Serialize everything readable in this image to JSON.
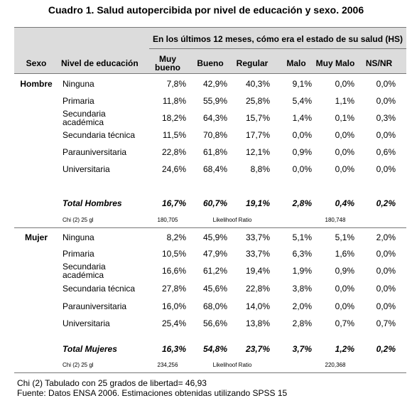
{
  "title": "Cuadro 1. Salud autopercibida por nivel de educación y sexo. 2006",
  "header": {
    "span_label": "En los últimos 12 meses, cómo era el estado de su salud (HS)",
    "columns": [
      "Sexo",
      "Nivel de educación",
      "Muy bueno",
      "Bueno",
      "Regular",
      "Malo",
      "Muy Malo",
      "NS/NR"
    ]
  },
  "groups": [
    {
      "sex": "Hombre",
      "rows": [
        {
          "level": "Ninguna",
          "values": [
            "7,8%",
            "42,9%",
            "40,3%",
            "9,1%",
            "0,0%",
            "0,0%"
          ]
        },
        {
          "level": "Primaria",
          "values": [
            "11,8%",
            "55,9%",
            "25,8%",
            "5,4%",
            "1,1%",
            "0,0%"
          ]
        },
        {
          "level": "Secundaria académica",
          "values": [
            "18,2%",
            "64,3%",
            "15,7%",
            "1,4%",
            "0,1%",
            "0,3%"
          ]
        },
        {
          "level": "Secundaria técnica",
          "values": [
            "11,5%",
            "70,8%",
            "17,7%",
            "0,0%",
            "0,0%",
            "0,0%"
          ]
        },
        {
          "level": "Parauniversitaria",
          "values": [
            "22,8%",
            "61,8%",
            "12,1%",
            "0,9%",
            "0,0%",
            "0,6%"
          ]
        },
        {
          "level": "Universitaria",
          "values": [
            "24,6%",
            "68,4%",
            "8,8%",
            "0,0%",
            "0,0%",
            "0,0%"
          ]
        }
      ],
      "total": {
        "label": "Total Hombres",
        "values": [
          "16,7%",
          "60,7%",
          "19,1%",
          "2,8%",
          "0,4%",
          "0,2%"
        ]
      },
      "chi": {
        "label": "Chi (2) 25 gl",
        "value": "180,705",
        "ratio_label": "Likelihoof Ratio",
        "ratio_value": "180,748"
      }
    },
    {
      "sex": "Mujer",
      "rows": [
        {
          "level": "Ninguna",
          "values": [
            "8,2%",
            "45,9%",
            "33,7%",
            "5,1%",
            "5,1%",
            "2,0%"
          ]
        },
        {
          "level": "Primaria",
          "values": [
            "10,5%",
            "47,9%",
            "33,7%",
            "6,3%",
            "1,6%",
            "0,0%"
          ]
        },
        {
          "level": "Secundaria académica",
          "values": [
            "16,6%",
            "61,2%",
            "19,4%",
            "1,9%",
            "0,9%",
            "0,0%"
          ]
        },
        {
          "level": "Secundaria técnica",
          "values": [
            "27,8%",
            "45,6%",
            "22,8%",
            "3,8%",
            "0,0%",
            "0,0%"
          ]
        },
        {
          "level": "Parauniversitaria",
          "values": [
            "16,0%",
            "68,0%",
            "14,0%",
            "2,0%",
            "0,0%",
            "0,0%"
          ]
        },
        {
          "level": "Universitaria",
          "values": [
            "25,4%",
            "56,6%",
            "13,8%",
            "2,8%",
            "0,7%",
            "0,7%"
          ]
        }
      ],
      "total": {
        "label": "Total Mujeres",
        "values": [
          "16,3%",
          "54,8%",
          "23,7%",
          "3,7%",
          "1,2%",
          "0,2%"
        ]
      },
      "chi": {
        "label": "Chi (2) 25 gl",
        "value": "234,256",
        "ratio_label": "Likelihoof Ratio",
        "ratio_value": "220,368"
      }
    }
  ],
  "footnotes": [
    "Chi (2) Tabulado con 25 grados de libertad= 46,93",
    "Fuente: Datos ENSA 2006. Estimaciones obtenidas utilizando SPSS 15"
  ]
}
